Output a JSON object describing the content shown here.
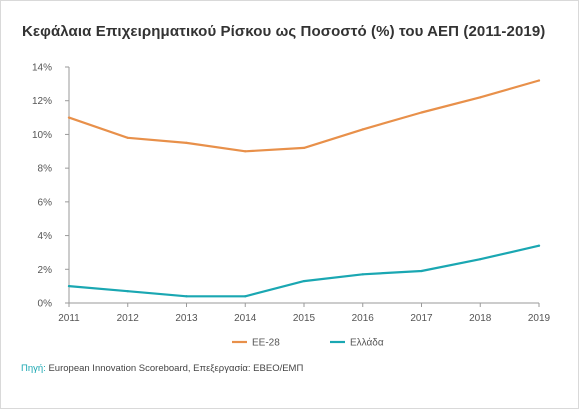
{
  "title": "Κεφάλαια Επιχειρηματικού Ρίσκου ως Ποσοστό (%) του ΑΕΠ (2011-2019)",
  "source": {
    "label": "Πηγή:",
    "text": " European Innovation Scoreboard, Επεξεργασία: ΕΒΕΟ/ΕΜΠ"
  },
  "chart_data": {
    "type": "line",
    "x": [
      "2011",
      "2012",
      "2013",
      "2014",
      "2015",
      "2016",
      "2017",
      "2018",
      "2019"
    ],
    "ylim": [
      0,
      14
    ],
    "yticks": [
      0,
      2,
      4,
      6,
      8,
      10,
      12,
      14
    ],
    "ytick_labels": [
      "0%",
      "2%",
      "4%",
      "6%",
      "8%",
      "10%",
      "12%",
      "14%"
    ],
    "grid": false,
    "legend_position": "bottom",
    "series": [
      {
        "name": "ΕΕ-28",
        "color": "#e8904a",
        "values": [
          11.0,
          9.8,
          9.5,
          9.0,
          9.2,
          10.3,
          11.3,
          12.2,
          13.2
        ]
      },
      {
        "name": "Ελλάδα",
        "color": "#1aa7b2",
        "values": [
          1.0,
          0.7,
          0.4,
          0.4,
          1.3,
          1.7,
          1.9,
          2.6,
          3.4
        ]
      }
    ]
  }
}
